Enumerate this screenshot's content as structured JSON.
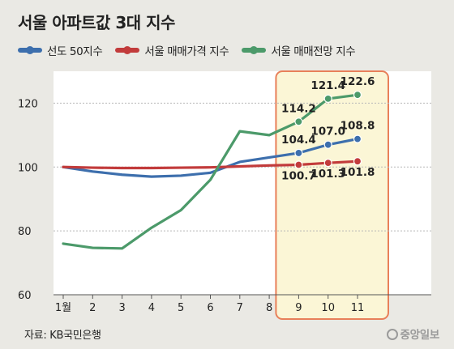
{
  "chart_data": {
    "type": "line",
    "title": "서울 아파트값 3대 지수",
    "categories": [
      "1월",
      "2",
      "3",
      "4",
      "5",
      "6",
      "7",
      "8",
      "9",
      "10",
      "11"
    ],
    "ylim": [
      60,
      130
    ],
    "yticks": [
      60,
      80,
      100,
      120
    ],
    "grid": true,
    "legend": "top-left",
    "highlight_range": [
      "9",
      "11"
    ],
    "series": [
      {
        "name": "선도 50지수",
        "color": "#3d6fad",
        "values": [
          100.0,
          98.6,
          97.6,
          97.0,
          97.3,
          98.2,
          101.6,
          103.0,
          104.4,
          107.0,
          108.8
        ],
        "labels": {
          "8": "104.4",
          "9": "107.0",
          "10": "108.8"
        }
      },
      {
        "name": "서울 매매가격 지수",
        "color": "#c23b3b",
        "values": [
          100.0,
          99.8,
          99.7,
          99.7,
          99.8,
          99.9,
          100.2,
          100.5,
          100.7,
          101.3,
          101.8
        ],
        "labels": {
          "8": "100.7",
          "9": "101.3",
          "10": "101.8"
        }
      },
      {
        "name": "서울 매매전망 지수",
        "color": "#4c9a6a",
        "values": [
          76.0,
          74.7,
          74.5,
          81.0,
          86.5,
          96.0,
          111.2,
          110.0,
          114.2,
          121.4,
          122.6
        ],
        "labels": {
          "8": "114.2",
          "9": "121.4",
          "10": "122.6"
        }
      }
    ]
  },
  "source": "자료: KB국민은행",
  "logo": "중앙일보"
}
